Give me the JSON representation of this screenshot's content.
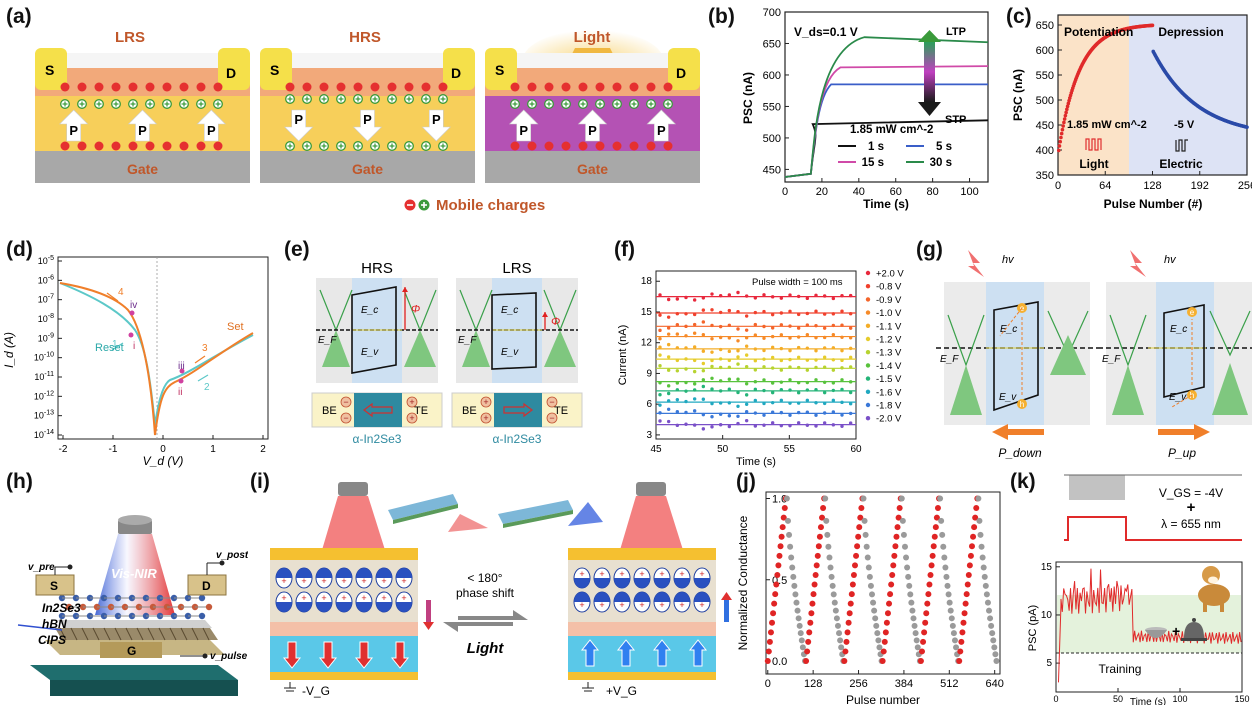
{
  "panel_labels": [
    "(a)",
    "(b)",
    "(c)",
    "(d)",
    "(e)",
    "(f)",
    "(g)",
    "(h)",
    "(i)",
    "(j)",
    "(k)"
  ],
  "a": {
    "titles": [
      "LRS",
      "HRS",
      "Light"
    ],
    "src": "S",
    "drain": "D",
    "pol": "P",
    "gate": "Gate",
    "legend": "Mobile charges",
    "colors": {
      "channel": "#f2a97a",
      "ferro": "#f7cf5a",
      "ferro_light": "#b452b4",
      "gate": "#a8a8a8",
      "electrode": "#f5e04a"
    }
  },
  "b": {
    "annotation": "V_ds=0.1 V",
    "ltp": "LTP",
    "stp": "STP",
    "intensity": "1.85 mW cm^-2",
    "xlabel": "Time (s)",
    "ylabel": "PSC (nA)",
    "xticks": [
      "0",
      "20",
      "40",
      "60",
      "80",
      "100"
    ],
    "yticks": [
      "450",
      "500",
      "550",
      "600",
      "650",
      "700"
    ],
    "legend": [
      "1 s",
      "5 s",
      "15 s",
      "30 s"
    ]
  },
  "c": {
    "regions": [
      "Potentiation",
      "Depression"
    ],
    "intensity": "1.85 mW cm^-2",
    "voltage": "-5 V",
    "light": "Light",
    "electric": "Electric",
    "xlabel": "Pulse Number (#)",
    "ylabel": "PSC (nA)",
    "xticks": [
      "0",
      "64",
      "128",
      "192",
      "256"
    ],
    "yticks": [
      "350",
      "400",
      "450",
      "500",
      "550",
      "600",
      "650"
    ]
  },
  "d": {
    "xlabel": "V_d (V)",
    "ylabel": "I_d (A)",
    "xticks": [
      "-2",
      "-1",
      "0",
      "1",
      "2"
    ],
    "yticks": [
      "10^-5",
      "10^-6",
      "10^-7",
      "10^-8",
      "10^-9",
      "10^-10",
      "10^-11",
      "10^-12",
      "10^-13",
      "10^-14"
    ],
    "reset": "Reset",
    "set": "Set",
    "marks": [
      "1",
      "2",
      "3",
      "4",
      "i",
      "ii",
      "iii",
      "iv"
    ]
  },
  "e": {
    "states": [
      "HRS",
      "LRS"
    ],
    "ec": "E_c",
    "ev": "E_v",
    "ef": "E_F",
    "phi": "Φ",
    "be": "BE",
    "te": "TE",
    "material": "α-In2Se3"
  },
  "f": {
    "annotation": "Pulse width = 100 ms",
    "xlabel": "Time (s)",
    "ylabel": "Current (nA)",
    "xticks": [
      "45",
      "50",
      "55",
      "60"
    ],
    "yticks": [
      "3",
      "6",
      "9",
      "12",
      "15",
      "18"
    ],
    "legend": [
      "+2.0 V",
      "-0.8 V",
      "-0.9 V",
      "-1.0 V",
      "-1.1 V",
      "-1.2 V",
      "-1.3 V",
      "-1.4 V",
      "-1.5 V",
      "-1.6 V",
      "-1.8 V",
      "-2.0 V"
    ],
    "levels": [
      16.5,
      14.9,
      13.6,
      12.6,
      11.4,
      10.4,
      9.5,
      8.2,
      7.3,
      6.2,
      5.1,
      4.0
    ],
    "colors": [
      "#e8283c",
      "#f0402c",
      "#f4652a",
      "#f68a28",
      "#f4ad28",
      "#e6cc2c",
      "#b7d330",
      "#58c23c",
      "#24b478",
      "#20a8c0",
      "#3a78d8",
      "#7a50c8"
    ]
  },
  "g": {
    "hv": "hv",
    "ec": "E_c",
    "ev": "E_v",
    "ef": "E_F",
    "e": "e",
    "h": "h",
    "pdown": "P_down",
    "pup": "P_up"
  },
  "h": {
    "vpre": "v_pre",
    "vpost": "v_post",
    "vpulse": "v_pulse",
    "light": "Vis-NIR",
    "s": "S",
    "d": "D",
    "g": "G",
    "layers": [
      "In2Se3",
      "hBN",
      "CIPS"
    ]
  },
  "i": {
    "phase": "< 180°",
    "phase2": "phase shift",
    "light": "Light",
    "vg_neg": "-V_G",
    "vg_pos": "+V_G"
  },
  "j": {
    "xlabel": "Pulse number",
    "ylabel": "Normalized Conductance",
    "xticks": [
      "0",
      "128",
      "256",
      "384",
      "512",
      "640"
    ],
    "yticks": [
      "0.0",
      "0.5",
      "1.0"
    ]
  },
  "k": {
    "vgs": "V_GS = -4V",
    "plus": "+",
    "lambda": "λ = 655 nm",
    "training": "Training",
    "xlabel": "Time (s)",
    "ylabel": "PSC (pA)",
    "xticks": [
      "0",
      "50",
      "100",
      "150"
    ],
    "yticks": [
      "5",
      "10",
      "15"
    ]
  }
}
